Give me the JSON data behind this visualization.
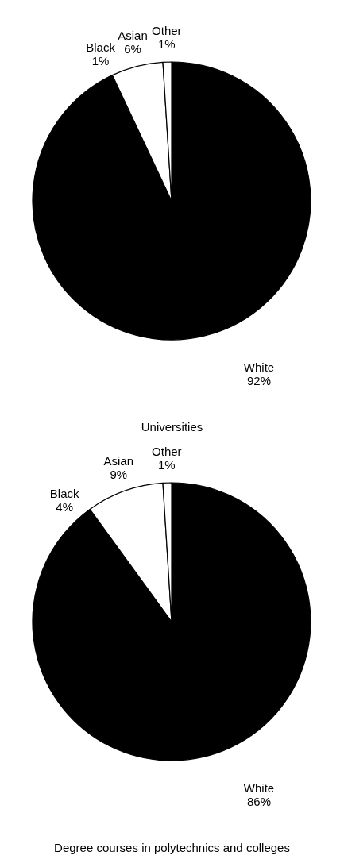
{
  "chart_data": [
    {
      "type": "pie",
      "title": "Universities",
      "categories": [
        "White",
        "Black",
        "Asian",
        "Other"
      ],
      "values": [
        92,
        1,
        6,
        1
      ],
      "colors": [
        "#000000",
        "#000000",
        "#ffffff",
        "#ffffff"
      ],
      "value_labels": [
        "92%",
        "1%",
        "6%",
        "1%"
      ]
    },
    {
      "type": "pie",
      "title": "Degree courses in polytechnics and colleges",
      "categories": [
        "White",
        "Black",
        "Asian",
        "Other"
      ],
      "values": [
        86,
        4,
        9,
        1
      ],
      "colors": [
        "#000000",
        "#000000",
        "#ffffff",
        "#ffffff"
      ],
      "value_labels": [
        "86%",
        "4%",
        "9%",
        "1%"
      ]
    }
  ]
}
